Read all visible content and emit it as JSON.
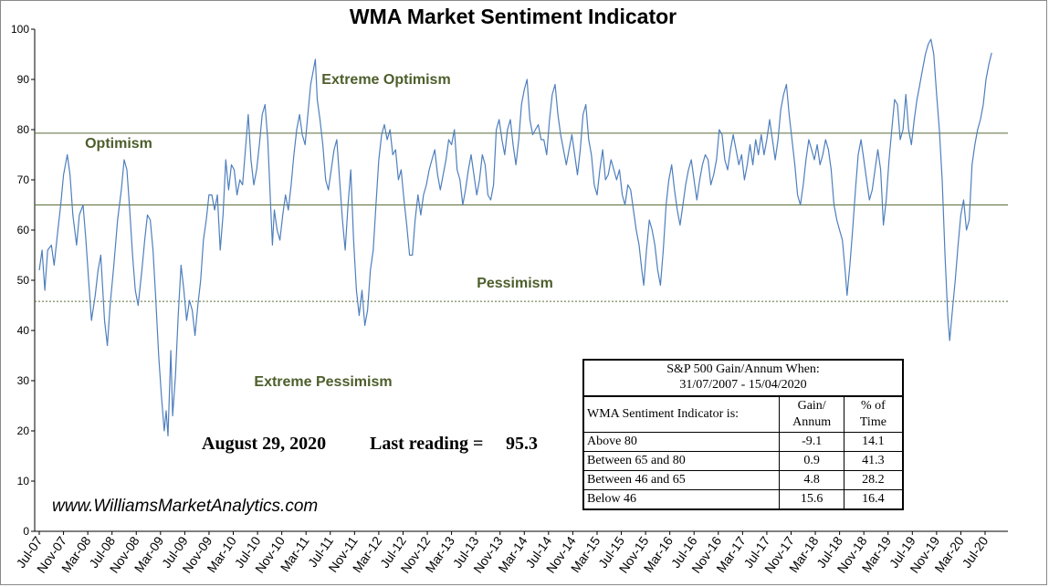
{
  "chart_data": {
    "type": "line",
    "title": "WMA Market Sentiment Indicator",
    "xlabel": "",
    "ylabel": "",
    "ylim": [
      0,
      100
    ],
    "yticks": [
      0,
      10,
      20,
      30,
      40,
      50,
      60,
      70,
      80,
      90,
      100
    ],
    "x_tick_labels": [
      "Jul-07",
      "Nov-07",
      "Mar-08",
      "Jul-08",
      "Nov-08",
      "Mar-09",
      "Jul-09",
      "Nov-09",
      "Mar-10",
      "Jul-10",
      "Nov-10",
      "Mar-11",
      "Jul-11",
      "Nov-11",
      "Mar-12",
      "Jul-12",
      "Nov-12",
      "Mar-13",
      "Jul-13",
      "Nov-13",
      "Mar-14",
      "Jul-14",
      "Nov-14",
      "Mar-15",
      "Jul-15",
      "Nov-15",
      "Mar-16",
      "Jul-16",
      "Nov-16",
      "Mar-17",
      "Jul-17",
      "Nov-17",
      "Mar-18",
      "Jul-18",
      "Nov-18",
      "Mar-19",
      "Jul-19",
      "Nov-19",
      "Mar-20",
      "Jul-20"
    ],
    "grid": false,
    "legend": "none",
    "line_color": "#4f7fbd",
    "threshold_color": "#5a6e3a",
    "zone_label_color": "#4d5e2b",
    "reference_lines": [
      {
        "y": 79.3,
        "style": "solid"
      },
      {
        "y": 65,
        "style": "solid"
      },
      {
        "y": 45.8,
        "style": "dashed"
      }
    ],
    "zone_labels": {
      "extreme_optimism": "Extreme Optimism",
      "optimism": "Optimism",
      "pessimism": "Pessimism",
      "extreme_pessimism": "Extreme Pessimism"
    },
    "series_points": [
      [
        0,
        52
      ],
      [
        0.3,
        56
      ],
      [
        0.6,
        48
      ],
      [
        0.9,
        56
      ],
      [
        1.3,
        57
      ],
      [
        1.6,
        53
      ],
      [
        2,
        60
      ],
      [
        2.3,
        65
      ],
      [
        2.6,
        71
      ],
      [
        3,
        75
      ],
      [
        3.3,
        71
      ],
      [
        3.6,
        63
      ],
      [
        4,
        57
      ],
      [
        4.3,
        63
      ],
      [
        4.7,
        65
      ],
      [
        5,
        58
      ],
      [
        5.3,
        50
      ],
      [
        5.6,
        42
      ],
      [
        6,
        47
      ],
      [
        6.3,
        52
      ],
      [
        6.6,
        55
      ],
      [
        7,
        42
      ],
      [
        7.3,
        37
      ],
      [
        7.6,
        45
      ],
      [
        8,
        53
      ],
      [
        8.4,
        62
      ],
      [
        8.8,
        68
      ],
      [
        9.1,
        74
      ],
      [
        9.4,
        72
      ],
      [
        9.7,
        64
      ],
      [
        10,
        55
      ],
      [
        10.3,
        48
      ],
      [
        10.6,
        45
      ],
      [
        11,
        52
      ],
      [
        11.3,
        58
      ],
      [
        11.6,
        63
      ],
      [
        11.9,
        62
      ],
      [
        12.2,
        56
      ],
      [
        12.5,
        46
      ],
      [
        12.8,
        35
      ],
      [
        13.1,
        27
      ],
      [
        13.4,
        20
      ],
      [
        13.6,
        24
      ],
      [
        13.8,
        19
      ],
      [
        14.1,
        36
      ],
      [
        14.3,
        23
      ],
      [
        14.6,
        31
      ],
      [
        14.9,
        43
      ],
      [
        15.2,
        53
      ],
      [
        15.5,
        48
      ],
      [
        15.8,
        42
      ],
      [
        16.1,
        46
      ],
      [
        16.4,
        44
      ],
      [
        16.7,
        39
      ],
      [
        17,
        45
      ],
      [
        17.3,
        50
      ],
      [
        17.6,
        58
      ],
      [
        17.9,
        62
      ],
      [
        18.2,
        67
      ],
      [
        18.5,
        67
      ],
      [
        18.8,
        64
      ],
      [
        19.1,
        67
      ],
      [
        19.4,
        56
      ],
      [
        19.7,
        63
      ],
      [
        20,
        74
      ],
      [
        20.3,
        68
      ],
      [
        20.6,
        73
      ],
      [
        20.9,
        72
      ],
      [
        21.2,
        67
      ],
      [
        21.5,
        70
      ],
      [
        21.8,
        69
      ],
      [
        22.1,
        76
      ],
      [
        22.4,
        83
      ],
      [
        22.7,
        74
      ],
      [
        23,
        69
      ],
      [
        23.3,
        72
      ],
      [
        23.6,
        77
      ],
      [
        23.9,
        83
      ],
      [
        24.2,
        85
      ],
      [
        24.5,
        78
      ],
      [
        24.8,
        65
      ],
      [
        25,
        57
      ],
      [
        25.2,
        64
      ],
      [
        25.5,
        60
      ],
      [
        25.8,
        58
      ],
      [
        26.1,
        63
      ],
      [
        26.4,
        67
      ],
      [
        26.7,
        64
      ],
      [
        27,
        69
      ],
      [
        27.3,
        75
      ],
      [
        27.6,
        80
      ],
      [
        27.9,
        83
      ],
      [
        28.2,
        79
      ],
      [
        28.5,
        77
      ],
      [
        28.8,
        83
      ],
      [
        29.1,
        89
      ],
      [
        29.4,
        92
      ],
      [
        29.6,
        94
      ],
      [
        29.8,
        86
      ],
      [
        30.1,
        82
      ],
      [
        30.4,
        77
      ],
      [
        30.7,
        70
      ],
      [
        31,
        68
      ],
      [
        31.3,
        72
      ],
      [
        31.6,
        76
      ],
      [
        31.9,
        78
      ],
      [
        32.2,
        70
      ],
      [
        32.5,
        62
      ],
      [
        32.8,
        56
      ],
      [
        33.1,
        65
      ],
      [
        33.4,
        72
      ],
      [
        33.7,
        58
      ],
      [
        34,
        48
      ],
      [
        34.3,
        43
      ],
      [
        34.6,
        48
      ],
      [
        34.9,
        41
      ],
      [
        35.2,
        44
      ],
      [
        35.5,
        52
      ],
      [
        35.8,
        56
      ],
      [
        36.1,
        65
      ],
      [
        36.4,
        74
      ],
      [
        36.7,
        79
      ],
      [
        37,
        81
      ],
      [
        37.3,
        78
      ],
      [
        37.6,
        80
      ],
      [
        37.9,
        75
      ],
      [
        38.2,
        76
      ],
      [
        38.5,
        70
      ],
      [
        38.8,
        72
      ],
      [
        39.1,
        66
      ],
      [
        39.4,
        61
      ],
      [
        39.7,
        55
      ],
      [
        40,
        55
      ],
      [
        40.3,
        62
      ],
      [
        40.6,
        67
      ],
      [
        40.9,
        63
      ],
      [
        41.2,
        67
      ],
      [
        41.5,
        69
      ],
      [
        41.8,
        72
      ],
      [
        42.1,
        74
      ],
      [
        42.4,
        76
      ],
      [
        42.7,
        71
      ],
      [
        43,
        68
      ],
      [
        43.3,
        71
      ],
      [
        43.6,
        74
      ],
      [
        43.9,
        78
      ],
      [
        44.2,
        77
      ],
      [
        44.5,
        80
      ],
      [
        44.8,
        72
      ],
      [
        45.1,
        70
      ],
      [
        45.4,
        65
      ],
      [
        45.7,
        68
      ],
      [
        46,
        72
      ],
      [
        46.3,
        75
      ],
      [
        46.6,
        71
      ],
      [
        46.9,
        67
      ],
      [
        47.2,
        70
      ],
      [
        47.5,
        75
      ],
      [
        47.8,
        73
      ],
      [
        48.1,
        67
      ],
      [
        48.4,
        66
      ],
      [
        48.7,
        69
      ],
      [
        49,
        80
      ],
      [
        49.3,
        82
      ],
      [
        49.6,
        78
      ],
      [
        49.9,
        75
      ],
      [
        50.2,
        80
      ],
      [
        50.5,
        82
      ],
      [
        50.8,
        77
      ],
      [
        51.1,
        73
      ],
      [
        51.4,
        78
      ],
      [
        51.7,
        85
      ],
      [
        52,
        88
      ],
      [
        52.3,
        90
      ],
      [
        52.6,
        82
      ],
      [
        52.9,
        79
      ],
      [
        53.2,
        80
      ],
      [
        53.5,
        81
      ],
      [
        53.8,
        78
      ],
      [
        54.1,
        78
      ],
      [
        54.4,
        75
      ],
      [
        54.7,
        82
      ],
      [
        55,
        87
      ],
      [
        55.3,
        89
      ],
      [
        55.6,
        83
      ],
      [
        55.9,
        79
      ],
      [
        56.2,
        76
      ],
      [
        56.5,
        73
      ],
      [
        56.8,
        76
      ],
      [
        57.1,
        79
      ],
      [
        57.4,
        75
      ],
      [
        57.7,
        71
      ],
      [
        58,
        76
      ],
      [
        58.3,
        83
      ],
      [
        58.6,
        85
      ],
      [
        58.9,
        78
      ],
      [
        59.2,
        75
      ],
      [
        59.5,
        69
      ],
      [
        59.8,
        67
      ],
      [
        60.1,
        72
      ],
      [
        60.4,
        76
      ],
      [
        60.7,
        70
      ],
      [
        61,
        71
      ],
      [
        61.3,
        74
      ],
      [
        61.6,
        72
      ],
      [
        61.9,
        70
      ],
      [
        62.2,
        72
      ],
      [
        62.5,
        67
      ],
      [
        62.8,
        65
      ],
      [
        63.1,
        69
      ],
      [
        63.4,
        68
      ],
      [
        63.7,
        64
      ],
      [
        64,
        60
      ],
      [
        64.3,
        57
      ],
      [
        64.6,
        52
      ],
      [
        64.8,
        49
      ],
      [
        65.1,
        56
      ],
      [
        65.4,
        62
      ],
      [
        65.7,
        60
      ],
      [
        66,
        57
      ],
      [
        66.3,
        52
      ],
      [
        66.6,
        49
      ],
      [
        66.9,
        56
      ],
      [
        67.2,
        65
      ],
      [
        67.5,
        70
      ],
      [
        67.8,
        73
      ],
      [
        68.1,
        68
      ],
      [
        68.4,
        64
      ],
      [
        68.7,
        61
      ],
      [
        69,
        65
      ],
      [
        69.3,
        69
      ],
      [
        69.6,
        72
      ],
      [
        69.9,
        74
      ],
      [
        70.2,
        70
      ],
      [
        70.5,
        66
      ],
      [
        70.8,
        70
      ],
      [
        71.1,
        73
      ],
      [
        71.4,
        75
      ],
      [
        71.7,
        74
      ],
      [
        72,
        69
      ],
      [
        72.3,
        71
      ],
      [
        72.6,
        74
      ],
      [
        72.9,
        80
      ],
      [
        73.2,
        79
      ],
      [
        73.5,
        74
      ],
      [
        73.8,
        72
      ],
      [
        74.1,
        76
      ],
      [
        74.4,
        79
      ],
      [
        74.7,
        76
      ],
      [
        75,
        73
      ],
      [
        75.3,
        75
      ],
      [
        75.6,
        70
      ],
      [
        75.9,
        73
      ],
      [
        76.2,
        77
      ],
      [
        76.5,
        73
      ],
      [
        76.8,
        78
      ],
      [
        77.1,
        75
      ],
      [
        77.4,
        79
      ],
      [
        77.7,
        75
      ],
      [
        78,
        78
      ],
      [
        78.3,
        82
      ],
      [
        78.6,
        78
      ],
      [
        78.9,
        74
      ],
      [
        79.2,
        78
      ],
      [
        79.5,
        84
      ],
      [
        79.8,
        87
      ],
      [
        80.1,
        89
      ],
      [
        80.4,
        83
      ],
      [
        80.7,
        78
      ],
      [
        81,
        73
      ],
      [
        81.3,
        67
      ],
      [
        81.6,
        65
      ],
      [
        81.9,
        69
      ],
      [
        82.2,
        74
      ],
      [
        82.5,
        78
      ],
      [
        82.8,
        76
      ],
      [
        83.1,
        74
      ],
      [
        83.4,
        77
      ],
      [
        83.7,
        73
      ],
      [
        84,
        75
      ],
      [
        84.3,
        78
      ],
      [
        84.6,
        76
      ],
      [
        84.9,
        72
      ],
      [
        85.2,
        65
      ],
      [
        85.5,
        62
      ],
      [
        85.8,
        60
      ],
      [
        86.1,
        58
      ],
      [
        86.4,
        52
      ],
      [
        86.6,
        47
      ],
      [
        86.9,
        53
      ],
      [
        87.2,
        60
      ],
      [
        87.5,
        68
      ],
      [
        87.8,
        75
      ],
      [
        88.1,
        78
      ],
      [
        88.4,
        74
      ],
      [
        88.7,
        70
      ],
      [
        89,
        66
      ],
      [
        89.3,
        68
      ],
      [
        89.6,
        72
      ],
      [
        89.9,
        76
      ],
      [
        90.2,
        72
      ],
      [
        90.5,
        61
      ],
      [
        90.8,
        66
      ],
      [
        91.1,
        74
      ],
      [
        91.4,
        80
      ],
      [
        91.7,
        86
      ],
      [
        92,
        85
      ],
      [
        92.3,
        78
      ],
      [
        92.6,
        80
      ],
      [
        92.9,
        87
      ],
      [
        93.2,
        80
      ],
      [
        93.5,
        77
      ],
      [
        93.8,
        82
      ],
      [
        94.1,
        86
      ],
      [
        94.4,
        89
      ],
      [
        94.7,
        92
      ],
      [
        95,
        95
      ],
      [
        95.3,
        97
      ],
      [
        95.6,
        98
      ],
      [
        95.9,
        95
      ],
      [
        96.2,
        87
      ],
      [
        96.5,
        80
      ],
      [
        96.8,
        70
      ],
      [
        97.1,
        55
      ],
      [
        97.4,
        43
      ],
      [
        97.6,
        38
      ],
      [
        97.9,
        44
      ],
      [
        98.2,
        50
      ],
      [
        98.5,
        57
      ],
      [
        98.8,
        63
      ],
      [
        99.1,
        66
      ],
      [
        99.4,
        60
      ],
      [
        99.7,
        62
      ],
      [
        100,
        73
      ],
      [
        100.3,
        77
      ],
      [
        100.6,
        80
      ],
      [
        100.9,
        82
      ],
      [
        101.2,
        85
      ],
      [
        101.5,
        90
      ],
      [
        101.8,
        93
      ],
      [
        102.1,
        95.3
      ]
    ]
  },
  "stats_table": {
    "header_line1": "S&P 500 Gain/Annum When:",
    "header_line2": "31/07/2007 - 15/04/2020",
    "col_label": "WMA Sentiment Indicator is:",
    "col_gain_line1": "Gain/",
    "col_gain_line2": "Annum",
    "col_time_line1": "% of",
    "col_time_line2": "Time",
    "rows": [
      {
        "label": "Above 80",
        "gain": "-9.1",
        "time": "14.1"
      },
      {
        "label": "Between 65 and 80",
        "gain": "0.9",
        "time": "41.3"
      },
      {
        "label": "Between 46 and 65",
        "gain": "4.8",
        "time": "28.2"
      },
      {
        "label": "Below 46",
        "gain": "15.6",
        "time": "16.4"
      }
    ]
  },
  "annotations": {
    "date": "August 29, 2020",
    "last_reading_label": "Last reading =",
    "last_reading_value": "95.3",
    "website": "www.WilliamsMarketAnalytics.com"
  }
}
